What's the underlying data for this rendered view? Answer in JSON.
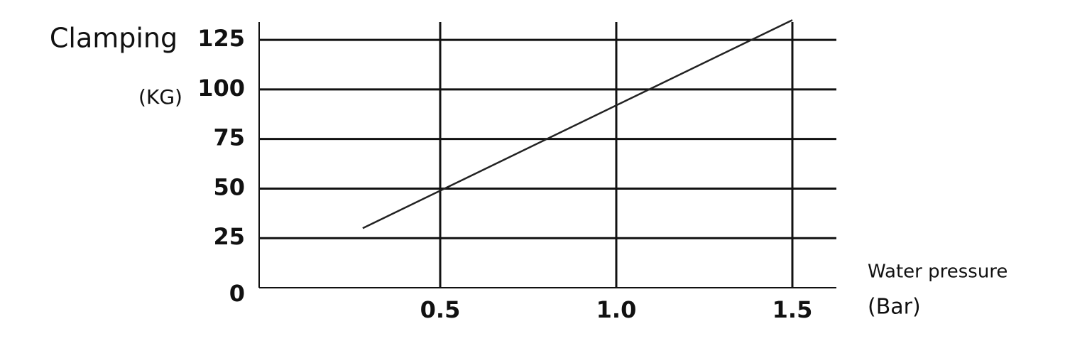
{
  "chart_data": {
    "type": "line",
    "y_label": "Clamping",
    "y_unit": "(KG)",
    "x_label": "Water pressure",
    "x_unit": "(Bar)",
    "x": [
      0.28,
      1.5
    ],
    "series": [
      {
        "color": "#222222",
        "values": [
          30,
          135
        ]
      }
    ],
    "xlim": [
      0,
      1.625
    ],
    "xticks": [
      0.5,
      {
        "value": 1,
        "label": "1.0"
      },
      1.5
    ],
    "ylim": [
      0,
      134
    ],
    "yticks": [
      0,
      25,
      50,
      75,
      100,
      125
    ],
    "grid": true
  }
}
